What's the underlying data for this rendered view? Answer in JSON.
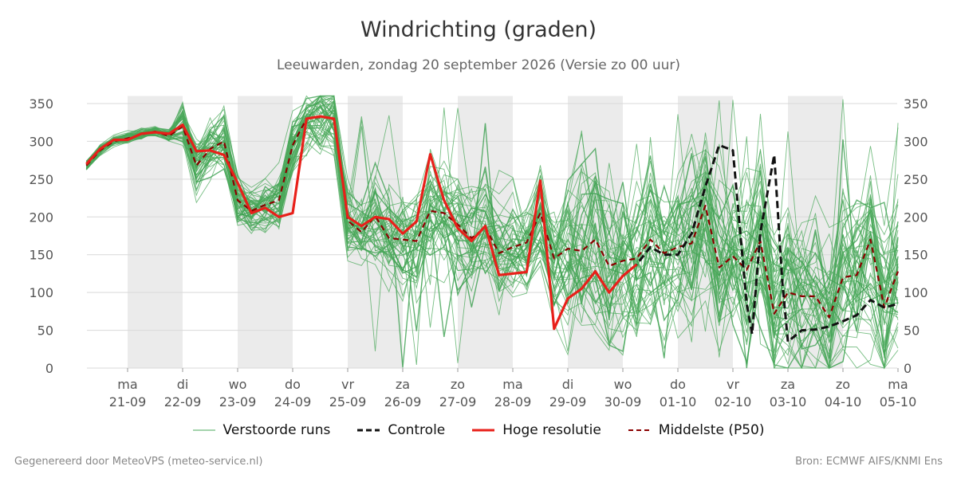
{
  "header": {
    "title": "Windrichting (graden)",
    "subtitle": "Leeuwarden, zondag 20 september 2026 (Versie zo 00 uur)"
  },
  "footer": {
    "left": "Gegenereerd door MeteoVPS (meteo-service.nl)",
    "right": "Bron: ECMWF AIFS/KNMI Ens"
  },
  "legend": {
    "items": [
      {
        "label": "Verstoorde runs",
        "color": "#4aa85a",
        "style": "thin"
      },
      {
        "label": "Controle",
        "color": "#111111",
        "style": "dashed"
      },
      {
        "label": "Hoge resolutie",
        "color": "#e8201a",
        "style": "solid"
      },
      {
        "label": "Middelste (P50)",
        "color": "#8b0000",
        "style": "dashed"
      }
    ]
  },
  "chart_data": {
    "type": "line",
    "title": "Windrichting (graden)",
    "ylim": [
      0,
      360
    ],
    "yticks": [
      0,
      50,
      100,
      150,
      200,
      250,
      300,
      350
    ],
    "xlim": [
      -0.75,
      14
    ],
    "grid": true,
    "legend_position": "bottom",
    "x_ticks": [
      {
        "x": 0,
        "day": "ma",
        "date": "21-09"
      },
      {
        "x": 1,
        "day": "di",
        "date": "22-09"
      },
      {
        "x": 2,
        "day": "wo",
        "date": "23-09"
      },
      {
        "x": 3,
        "day": "do",
        "date": "24-09"
      },
      {
        "x": 4,
        "day": "vr",
        "date": "25-09"
      },
      {
        "x": 5,
        "day": "za",
        "date": "26-09"
      },
      {
        "x": 6,
        "day": "zo",
        "date": "27-09"
      },
      {
        "x": 7,
        "day": "ma",
        "date": "28-09"
      },
      {
        "x": 8,
        "day": "di",
        "date": "29-09"
      },
      {
        "x": 9,
        "day": "wo",
        "date": "30-09"
      },
      {
        "x": 10,
        "day": "do",
        "date": "01-10"
      },
      {
        "x": 11,
        "day": "vr",
        "date": "02-10"
      },
      {
        "x": 12,
        "day": "za",
        "date": "03-10"
      },
      {
        "x": 13,
        "day": "zo",
        "date": "04-10"
      },
      {
        "x": 14,
        "day": "ma",
        "date": "05-10"
      }
    ],
    "shaded_nights": [
      [
        0,
        1
      ],
      [
        2,
        3
      ],
      [
        4,
        5
      ],
      [
        6,
        7
      ],
      [
        8,
        9
      ],
      [
        10,
        11
      ],
      [
        12,
        13
      ]
    ],
    "colors": {
      "ensemble": "#4aa85a",
      "ensemble_strong": "#2f9a44",
      "control": "#111111",
      "hires": "#e8201a",
      "median": "#8b0000",
      "night": "#ebebeb",
      "grid": "#d9d9d9"
    },
    "series": [
      {
        "name": "Hoge resolutie",
        "style": "solid",
        "x": [
          -0.75,
          -0.5,
          -0.25,
          0,
          0.25,
          0.5,
          0.75,
          1,
          1.25,
          1.5,
          1.75,
          2,
          2.25,
          2.5,
          2.75,
          3,
          3.25,
          3.5,
          3.75,
          4,
          4.25,
          4.5,
          4.75,
          5,
          5.25,
          5.5,
          5.75,
          6,
          6.25,
          6.5,
          6.75,
          7,
          7.25,
          7.5,
          7.75,
          8,
          8.25,
          8.5,
          8.75,
          9,
          9.25
        ],
        "y": [
          270,
          290,
          302,
          302,
          310,
          312,
          310,
          322,
          287,
          288,
          282,
          245,
          205,
          212,
          200,
          205,
          330,
          333,
          330,
          200,
          188,
          200,
          197,
          178,
          194,
          283,
          222,
          185,
          168,
          188,
          123,
          125,
          127,
          248,
          52,
          92,
          105,
          128,
          100,
          122,
          137
        ]
      },
      {
        "name": "Controle",
        "style": "dashed",
        "x": [
          9,
          9.25,
          9.5,
          9.75,
          10,
          10.25,
          10.5,
          10.75,
          11,
          11.25,
          11.35,
          11.5,
          11.75,
          11.9,
          12,
          12.25,
          12.5,
          12.75,
          13,
          13.25,
          13.5,
          13.75,
          14
        ],
        "y": [
          122,
          137,
          160,
          150,
          150,
          178,
          240,
          295,
          288,
          85,
          45,
          180,
          282,
          112,
          35,
          50,
          51,
          55,
          62,
          70,
          90,
          80,
          85
        ]
      },
      {
        "name": "Middelste (P50)",
        "style": "dashed",
        "x": [
          -0.75,
          -0.5,
          -0.25,
          0,
          0.25,
          0.5,
          0.75,
          1,
          1.25,
          1.5,
          1.75,
          2,
          2.25,
          2.5,
          2.75,
          3,
          3.25,
          3.5,
          3.75,
          4,
          4.25,
          4.5,
          4.75,
          5,
          5.25,
          5.5,
          5.75,
          6,
          6.25,
          6.5,
          6.75,
          7,
          7.25,
          7.5,
          7.75,
          8,
          8.25,
          8.5,
          8.75,
          9,
          9.25,
          9.5,
          9.75,
          10,
          10.25,
          10.5,
          10.75,
          11,
          11.25,
          11.5,
          11.75,
          12,
          12.25,
          12.5,
          12.75,
          13,
          13.25,
          13.5,
          13.75,
          14
        ],
        "y": [
          268,
          288,
          300,
          304,
          309,
          313,
          307,
          320,
          268,
          290,
          300,
          222,
          208,
          216,
          222,
          295,
          330,
          332,
          330,
          195,
          180,
          201,
          172,
          170,
          168,
          208,
          205,
          190,
          172,
          186,
          152,
          160,
          166,
          205,
          145,
          158,
          155,
          170,
          135,
          142,
          145,
          170,
          152,
          160,
          165,
          215,
          133,
          148,
          130,
          168,
          72,
          100,
          95,
          95,
          67,
          120,
          123,
          170,
          80,
          128
        ]
      }
    ]
  }
}
